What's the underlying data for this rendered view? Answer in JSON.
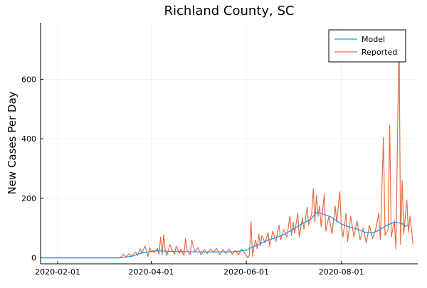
{
  "chart_data": {
    "type": "line",
    "title": "Richland County, SC",
    "xlabel": "",
    "ylabel": "New Cases Per Day",
    "xlim": [
      "2020-01-21",
      "2020-09-19"
    ],
    "ylim": [
      -20,
      790
    ],
    "grid": true,
    "legend_position": "top-right",
    "x_ticks": [
      "2020-02-01",
      "2020-04-01",
      "2020-06-01",
      "2020-08-01"
    ],
    "y_ticks": [
      0,
      200,
      400,
      600
    ],
    "series": [
      {
        "name": "Model",
        "color": "#009AFA",
        "points": [
          [
            "2020-01-22",
            0
          ],
          [
            "2020-02-15",
            0
          ],
          [
            "2020-03-10",
            0
          ],
          [
            "2020-03-15",
            2
          ],
          [
            "2020-03-20",
            6
          ],
          [
            "2020-03-25",
            15
          ],
          [
            "2020-03-30",
            20
          ],
          [
            "2020-04-05",
            24
          ],
          [
            "2020-04-12",
            22
          ],
          [
            "2020-04-20",
            21
          ],
          [
            "2020-05-01",
            20
          ],
          [
            "2020-05-10",
            20
          ],
          [
            "2020-05-20",
            20
          ],
          [
            "2020-05-25",
            21
          ],
          [
            "2020-06-01",
            26
          ],
          [
            "2020-06-05",
            36
          ],
          [
            "2020-06-10",
            48
          ],
          [
            "2020-06-15",
            60
          ],
          [
            "2020-06-20",
            68
          ],
          [
            "2020-06-25",
            78
          ],
          [
            "2020-07-01",
            96
          ],
          [
            "2020-07-07",
            116
          ],
          [
            "2020-07-12",
            128
          ],
          [
            "2020-07-16",
            152
          ],
          [
            "2020-07-19",
            150
          ],
          [
            "2020-07-25",
            138
          ],
          [
            "2020-08-01",
            114
          ],
          [
            "2020-08-06",
            104
          ],
          [
            "2020-08-11",
            97
          ],
          [
            "2020-08-16",
            86
          ],
          [
            "2020-08-21",
            84
          ],
          [
            "2020-08-25",
            92
          ],
          [
            "2020-08-29",
            106
          ],
          [
            "2020-09-02",
            116
          ],
          [
            "2020-09-05",
            120
          ],
          [
            "2020-09-09",
            115
          ],
          [
            "2020-09-11",
            106
          ],
          [
            "2020-09-13",
            110
          ]
        ]
      },
      {
        "name": "Reported",
        "color": "#E26F46",
        "points": [
          [
            "2020-01-22",
            0
          ],
          [
            "2020-03-05",
            0
          ],
          [
            "2020-03-12",
            0
          ],
          [
            "2020-03-14",
            12
          ],
          [
            "2020-03-16",
            3
          ],
          [
            "2020-03-18",
            15
          ],
          [
            "2020-03-19",
            5
          ],
          [
            "2020-03-20",
            10
          ],
          [
            "2020-03-22",
            20
          ],
          [
            "2020-03-23",
            8
          ],
          [
            "2020-03-25",
            30
          ],
          [
            "2020-03-26",
            15
          ],
          [
            "2020-03-28",
            40
          ],
          [
            "2020-03-30",
            5
          ],
          [
            "2020-03-31",
            35
          ],
          [
            "2020-04-01",
            20
          ],
          [
            "2020-04-02",
            25
          ],
          [
            "2020-04-03",
            18
          ],
          [
            "2020-04-05",
            32
          ],
          [
            "2020-04-06",
            12
          ],
          [
            "2020-04-07",
            70
          ],
          [
            "2020-04-08",
            10
          ],
          [
            "2020-04-09",
            78
          ],
          [
            "2020-04-10",
            25
          ],
          [
            "2020-04-11",
            8
          ],
          [
            "2020-04-13",
            45
          ],
          [
            "2020-04-14",
            30
          ],
          [
            "2020-04-16",
            12
          ],
          [
            "2020-04-17",
            40
          ],
          [
            "2020-04-19",
            15
          ],
          [
            "2020-04-20",
            28
          ],
          [
            "2020-04-22",
            8
          ],
          [
            "2020-04-23",
            65
          ],
          [
            "2020-04-24",
            25
          ],
          [
            "2020-04-26",
            10
          ],
          [
            "2020-04-27",
            60
          ],
          [
            "2020-04-29",
            20
          ],
          [
            "2020-05-01",
            35
          ],
          [
            "2020-05-03",
            10
          ],
          [
            "2020-05-05",
            28
          ],
          [
            "2020-05-07",
            15
          ],
          [
            "2020-05-09",
            30
          ],
          [
            "2020-05-11",
            18
          ],
          [
            "2020-05-13",
            32
          ],
          [
            "2020-05-15",
            10
          ],
          [
            "2020-05-17",
            28
          ],
          [
            "2020-05-19",
            14
          ],
          [
            "2020-05-21",
            30
          ],
          [
            "2020-05-23",
            12
          ],
          [
            "2020-05-25",
            25
          ],
          [
            "2020-05-27",
            10
          ],
          [
            "2020-05-29",
            30
          ],
          [
            "2020-05-31",
            15
          ],
          [
            "2020-06-02",
            0
          ],
          [
            "2020-06-03",
            10
          ],
          [
            "2020-06-04",
            122
          ],
          [
            "2020-06-05",
            5
          ],
          [
            "2020-06-06",
            40
          ],
          [
            "2020-06-07",
            60
          ],
          [
            "2020-06-08",
            30
          ],
          [
            "2020-06-09",
            80
          ],
          [
            "2020-06-10",
            40
          ],
          [
            "2020-06-11",
            75
          ],
          [
            "2020-06-13",
            50
          ],
          [
            "2020-06-15",
            85
          ],
          [
            "2020-06-16",
            40
          ],
          [
            "2020-06-18",
            90
          ],
          [
            "2020-06-20",
            55
          ],
          [
            "2020-06-22",
            110
          ],
          [
            "2020-06-23",
            60
          ],
          [
            "2020-06-25",
            95
          ],
          [
            "2020-06-27",
            70
          ],
          [
            "2020-06-29",
            140
          ],
          [
            "2020-06-30",
            75
          ],
          [
            "2020-07-01",
            120
          ],
          [
            "2020-07-02",
            82
          ],
          [
            "2020-07-04",
            150
          ],
          [
            "2020-07-05",
            70
          ],
          [
            "2020-07-07",
            135
          ],
          [
            "2020-07-08",
            95
          ],
          [
            "2020-07-10",
            170
          ],
          [
            "2020-07-11",
            110
          ],
          [
            "2020-07-13",
            150
          ],
          [
            "2020-07-14",
            232
          ],
          [
            "2020-07-15",
            120
          ],
          [
            "2020-07-16",
            210
          ],
          [
            "2020-07-17",
            140
          ],
          [
            "2020-07-18",
            175
          ],
          [
            "2020-07-19",
            105
          ],
          [
            "2020-07-21",
            215
          ],
          [
            "2020-07-22",
            90
          ],
          [
            "2020-07-24",
            140
          ],
          [
            "2020-07-26",
            80
          ],
          [
            "2020-07-28",
            175
          ],
          [
            "2020-07-29",
            120
          ],
          [
            "2020-07-31",
            222
          ],
          [
            "2020-08-01",
            105
          ],
          [
            "2020-08-02",
            70
          ],
          [
            "2020-08-04",
            150
          ],
          [
            "2020-08-05",
            55
          ],
          [
            "2020-08-07",
            140
          ],
          [
            "2020-08-09",
            70
          ],
          [
            "2020-08-11",
            125
          ],
          [
            "2020-08-13",
            60
          ],
          [
            "2020-08-15",
            100
          ],
          [
            "2020-08-17",
            50
          ],
          [
            "2020-08-19",
            110
          ],
          [
            "2020-08-21",
            65
          ],
          [
            "2020-08-23",
            95
          ],
          [
            "2020-08-25",
            150
          ],
          [
            "2020-08-26",
            60
          ],
          [
            "2020-08-28",
            405
          ],
          [
            "2020-08-29",
            75
          ],
          [
            "2020-08-31",
            95
          ],
          [
            "2020-09-01",
            445
          ],
          [
            "2020-09-02",
            70
          ],
          [
            "2020-09-04",
            125
          ],
          [
            "2020-09-05",
            30
          ],
          [
            "2020-09-07",
            760
          ],
          [
            "2020-09-08",
            45
          ],
          [
            "2020-09-09",
            260
          ],
          [
            "2020-09-10",
            80
          ],
          [
            "2020-09-12",
            195
          ],
          [
            "2020-09-13",
            85
          ],
          [
            "2020-09-14",
            140
          ],
          [
            "2020-09-16",
            45
          ]
        ]
      }
    ]
  }
}
